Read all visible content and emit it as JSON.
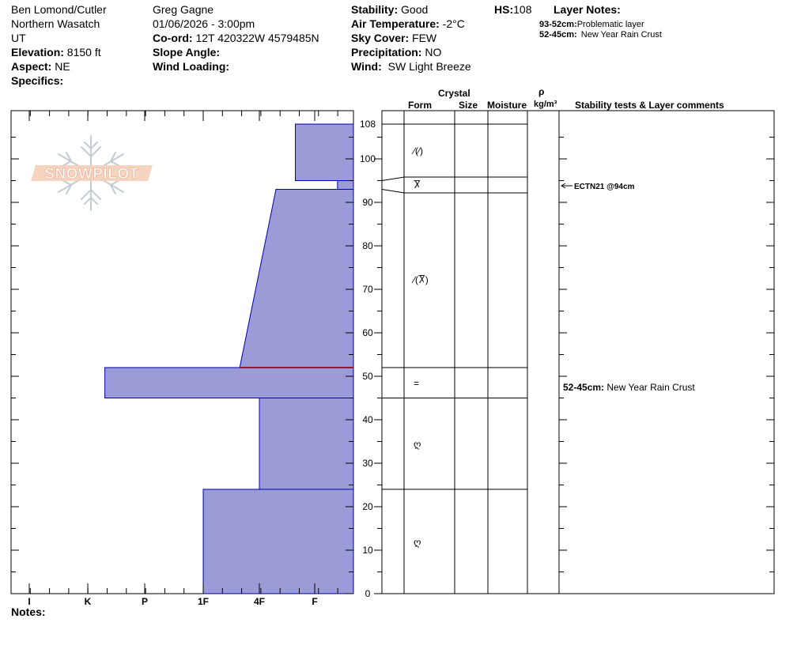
{
  "header": {
    "col1": {
      "location": "Ben Lomond/Cutler",
      "range": "Northern Wasatch",
      "state": "UT",
      "elevation_label": "Elevation:",
      "elevation_value": "8150 ft",
      "aspect_label": "Aspect:",
      "aspect_value": "NE",
      "specifics_label": "Specifics:"
    },
    "col2": {
      "observer": "Greg Gagne",
      "datetime": "01/06/2026 - 3:00pm",
      "coord_label": "Co-ord:",
      "coord_value": "12T 420322W 4579485N",
      "slope_label": "Slope Angle:",
      "wind_loading_label": "Wind Loading:"
    },
    "col3": {
      "stability_label": "Stability:",
      "stability_value": "Good",
      "air_temp_label": "Air Temperature:",
      "air_temp_value": "-2°C",
      "sky_label": "Sky Cover:",
      "sky_value": "FEW",
      "precip_label": "Precipitation:",
      "precip_value": "NO",
      "wind_label": "Wind:",
      "wind_value": "SW Light Breeze"
    },
    "hs_label": "HS:",
    "hs_value": "108",
    "layer_notes_label": "Layer Notes:",
    "layer_notes": [
      {
        "range": "93-52cm:",
        "text": "Problematic layer"
      },
      {
        "range": "52-45cm:",
        "text": "New Year Rain Crust"
      }
    ]
  },
  "logo_text": "SNOWPILOT",
  "table_headers": {
    "crystal": "Crystal",
    "form": "Form",
    "size": "Size",
    "moisture": "Moisture",
    "rho": "ρ",
    "density_unit": "kg/m³",
    "comments": "Stability tests & Layer comments"
  },
  "notes_label": "Notes:",
  "chart_data": {
    "type": "bar",
    "orientation": "horizontal",
    "description_axes": {
      "y_label": "",
      "x_label": ""
    },
    "ylim": [
      0,
      108
    ],
    "y_ticks": [
      0,
      10,
      20,
      30,
      40,
      50,
      60,
      70,
      80,
      90,
      100,
      108
    ],
    "hardness_categories": [
      "I",
      "K",
      "P",
      "1F",
      "4F",
      "F"
    ],
    "layers": [
      {
        "bottom": 0,
        "top": 24,
        "hardness": "1F",
        "form_symbol": "rounds",
        "form_glyph": "ღ"
      },
      {
        "bottom": 24,
        "top": 45,
        "hardness": "4F",
        "form_symbol": "rounds",
        "form_glyph": "ღ"
      },
      {
        "bottom": 45,
        "top": 52,
        "hardness": "K+",
        "hardness_value": 1.3,
        "form_symbol": "melt-freeze crust",
        "form_glyph": "="
      },
      {
        "bottom": 52,
        "top": 93,
        "hardness_bottom": "4F-",
        "hardness_top": "4F+",
        "hardness_bottom_value": 3.65,
        "hardness_top_value": 4.3,
        "form_symbol": "decomposing / surface hoar",
        "form_glyph": "⁄(Ⴟ)"
      },
      {
        "bottom": 93,
        "top": 95,
        "hardness": "F+",
        "hardness_value": 5.4,
        "form_symbol": "surface hoar",
        "form_glyph": "Ⴟ"
      },
      {
        "bottom": 95,
        "top": 108,
        "hardness": "F-",
        "hardness_value": 4.65,
        "form_symbol": "precipitation particles / decomposing",
        "form_glyph": "⁄(⁄)"
      }
    ],
    "problem_layer_line_depth": 52,
    "stability_tests": [
      {
        "depth": 94,
        "text": "ECTN21 @94cm"
      }
    ],
    "layer_comments": [
      {
        "depth": 48.5,
        "range": "52-45cm:",
        "text": "New Year Rain Crust"
      }
    ],
    "colors": {
      "layer_fill": "#9b9bd7",
      "layer_stroke": "#0000aa",
      "problem_line": "#8b1a3a"
    }
  }
}
